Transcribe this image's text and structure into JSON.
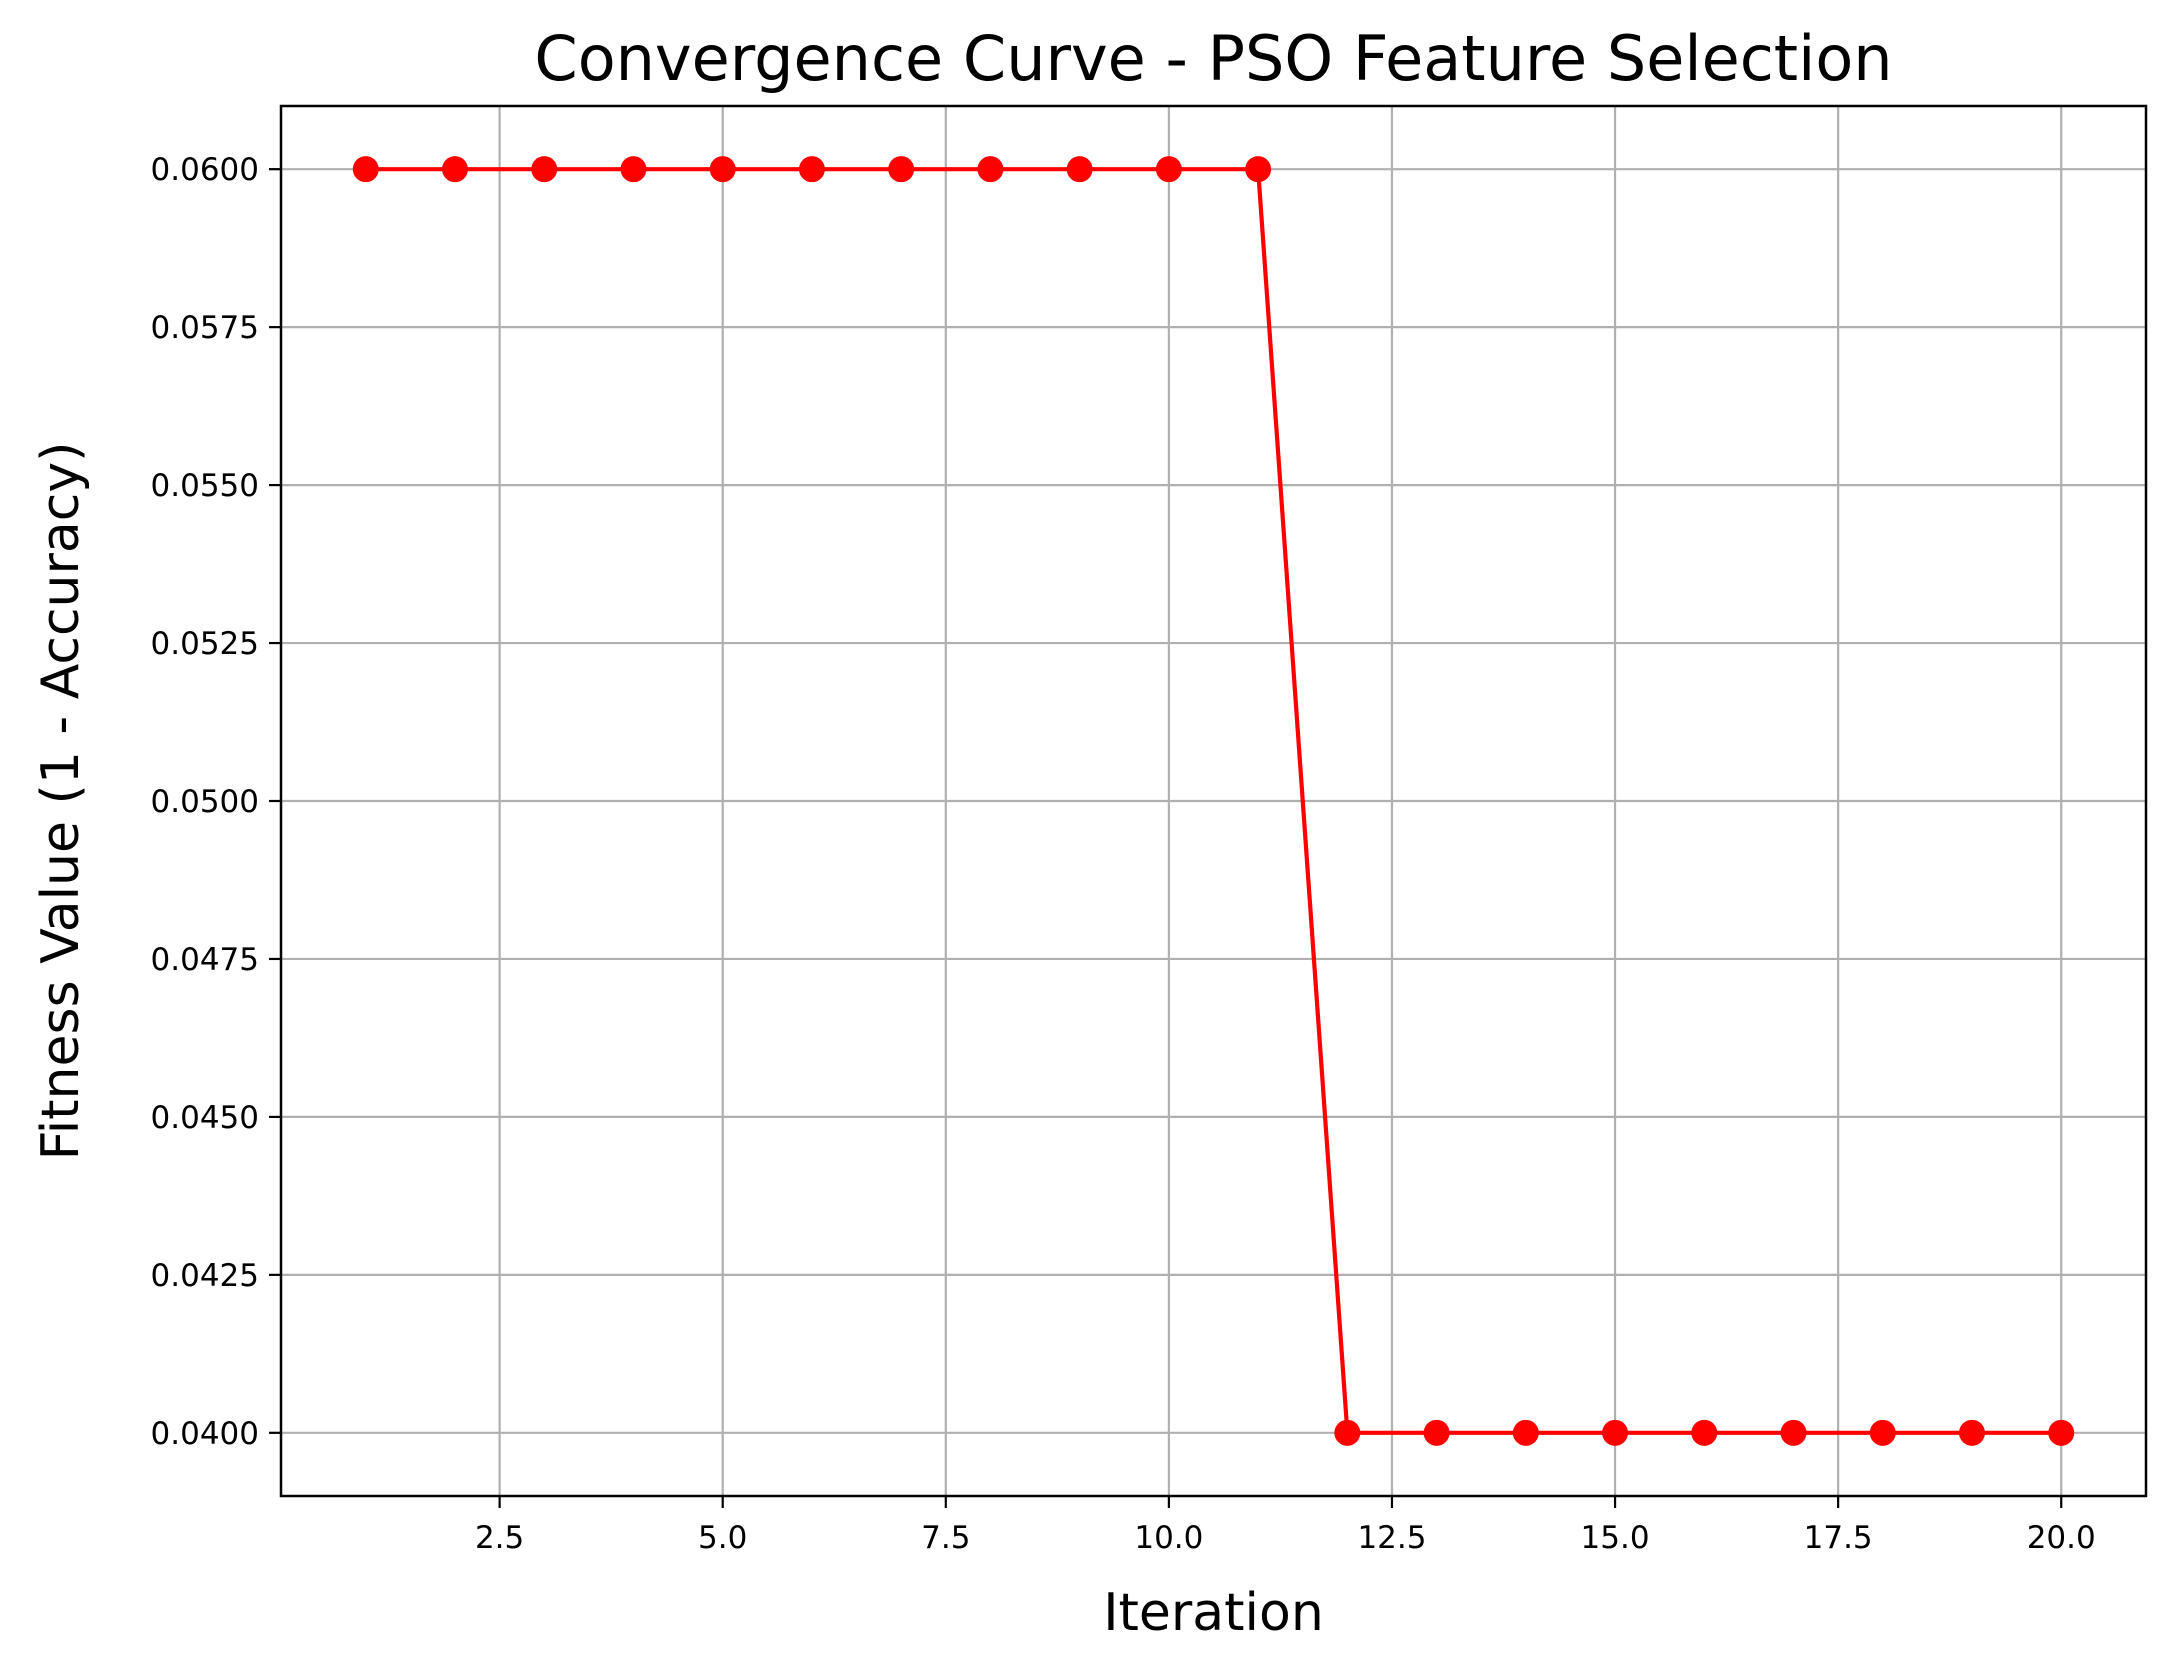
{
  "chart_data": {
    "type": "line",
    "title": "Convergence Curve - PSO Feature Selection",
    "xlabel": "Iteration",
    "ylabel": "Fitness Value (1 - Accuracy)",
    "xlim": [
      0.05,
      20.95
    ],
    "ylim": [
      0.039,
      0.061
    ],
    "xticks": [
      2.5,
      5.0,
      7.5,
      10.0,
      12.5,
      15.0,
      17.5,
      20.0
    ],
    "xtick_labels": [
      "2.5",
      "5.0",
      "7.5",
      "10.0",
      "12.5",
      "15.0",
      "17.5",
      "20.0"
    ],
    "yticks": [
      0.04,
      0.0425,
      0.045,
      0.0475,
      0.05,
      0.0525,
      0.055,
      0.0575,
      0.06
    ],
    "ytick_labels": [
      "0.0400",
      "0.0425",
      "0.0450",
      "0.0475",
      "0.0500",
      "0.0525",
      "0.0550",
      "0.0575",
      "0.0600"
    ],
    "grid": true,
    "legend": false,
    "series": [
      {
        "color": "#ff0000",
        "marker": "circle",
        "x": [
          1,
          2,
          3,
          4,
          5,
          6,
          7,
          8,
          9,
          10,
          11,
          12,
          13,
          14,
          15,
          16,
          17,
          18,
          19,
          20
        ],
        "y": [
          0.06,
          0.06,
          0.06,
          0.06,
          0.06,
          0.06,
          0.06,
          0.06,
          0.06,
          0.06,
          0.06,
          0.04,
          0.04,
          0.04,
          0.04,
          0.04,
          0.04,
          0.04,
          0.04,
          0.04
        ]
      }
    ]
  }
}
